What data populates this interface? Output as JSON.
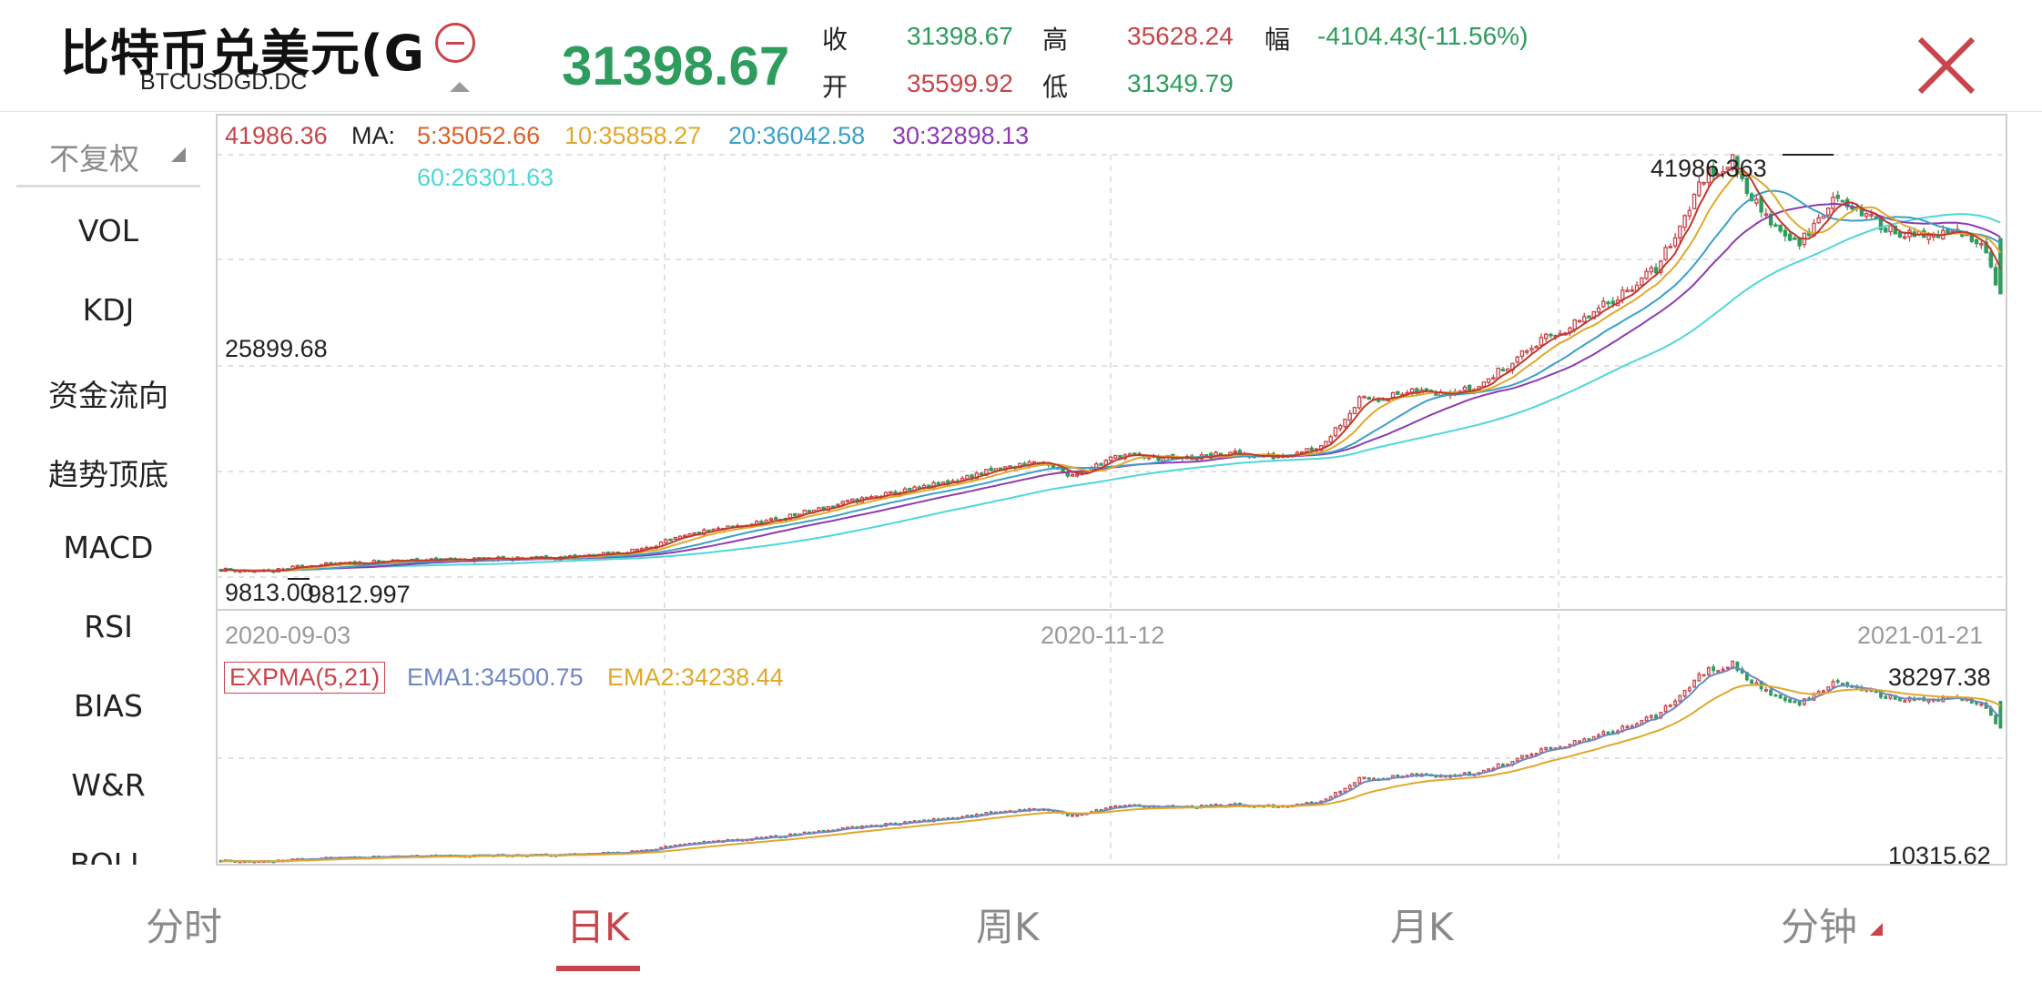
{
  "header": {
    "symbol_name": "比特币兑美元(G",
    "symbol_code": "BTCUSDGD.DC",
    "last_price": "31398.67",
    "quote": {
      "close_label": "收",
      "close": "31398.67",
      "open_label": "开",
      "open": "35599.92",
      "high_label": "高",
      "high": "35628.24",
      "low_label": "低",
      "low": "31349.79",
      "change_label": "幅",
      "change": "-4104.43(-11.56%)"
    },
    "close_icon": "close-x-icon",
    "collapse_icon": "minus-circle-icon"
  },
  "sidebar": {
    "adjust_option": "不复权",
    "indicators": [
      "VOL",
      "KDJ",
      "资金流向",
      "趋势顶底",
      "MACD",
      "RSI",
      "BIAS",
      "W&R",
      "BOLL"
    ]
  },
  "main_legend": {
    "price": "41986.36",
    "ma_label": "MA:",
    "ma5": "5:35052.66",
    "ma10": "10:35858.27",
    "ma20": "20:36042.58",
    "ma30": "30:32898.13",
    "ma60": "60:26301.63"
  },
  "main_axis": {
    "mid_value": "25899.68",
    "min_value": "9813.00",
    "high_marker": "41986.363",
    "low_marker": "9812.997"
  },
  "dates": [
    "2020-09-03",
    "2020-11-12",
    "2021-01-21"
  ],
  "sub_legend": {
    "name": "EXPMA(5,21)",
    "ema1": "EMA1:34500.75",
    "ema2": "EMA2:34238.44"
  },
  "sub_axis": {
    "max_value": "38297.38",
    "min_value": "10315.62"
  },
  "tabs": [
    {
      "label": "分时",
      "active": false
    },
    {
      "label": "日K",
      "active": true
    },
    {
      "label": "周K",
      "active": false
    },
    {
      "label": "月K",
      "active": false
    },
    {
      "label": "分钟",
      "active": false
    }
  ],
  "colors": {
    "up": "#c8454b",
    "down": "#2e9c5c",
    "ma5": "#c0392b",
    "ma10": "#e0a82c",
    "ma20": "#3aa0c8",
    "ma30": "#8e3ab0",
    "ma60": "#4fd6d6",
    "ema1": "#6f86c4",
    "ema2": "#e0a82c"
  },
  "chart_data": {
    "type": "candlestick",
    "x_range": [
      "2020-08-24",
      "2021-01-21"
    ],
    "price_axis": {
      "min": 9813.0,
      "max": 41986.36
    },
    "sub_axis": {
      "min": 10315.62,
      "max": 38297.38
    },
    "close_anchors": [
      [
        0,
        10400
      ],
      [
        10,
        10200
      ],
      [
        18,
        10700
      ],
      [
        25,
        10800
      ],
      [
        40,
        11100
      ],
      [
        60,
        11200
      ],
      [
        72,
        11300
      ],
      [
        85,
        11700
      ],
      [
        100,
        13200
      ],
      [
        115,
        14100
      ],
      [
        132,
        15600
      ],
      [
        148,
        16700
      ],
      [
        160,
        17800
      ],
      [
        170,
        18600
      ],
      [
        178,
        17600
      ],
      [
        188,
        19100
      ],
      [
        200,
        18800
      ],
      [
        212,
        19200
      ],
      [
        220,
        19000
      ],
      [
        230,
        19800
      ],
      [
        238,
        23300
      ],
      [
        250,
        23900
      ],
      [
        262,
        24100
      ],
      [
        275,
        27600
      ],
      [
        285,
        29400
      ],
      [
        295,
        32000
      ],
      [
        300,
        33300
      ],
      [
        305,
        36600
      ],
      [
        310,
        40300
      ],
      [
        316,
        41500
      ],
      [
        322,
        37500
      ],
      [
        330,
        35200
      ],
      [
        338,
        38900
      ],
      [
        346,
        36800
      ],
      [
        354,
        35700
      ],
      [
        362,
        36000
      ],
      [
        368,
        35600
      ],
      [
        372,
        31398.67
      ]
    ],
    "ma_last": {
      "ma5": 35052.66,
      "ma10": 35858.27,
      "ma20": 36042.58,
      "ma30": 32898.13,
      "ma60": 26301.63
    },
    "ema_last": {
      "ema1": 34500.75,
      "ema2": 34238.44
    }
  }
}
